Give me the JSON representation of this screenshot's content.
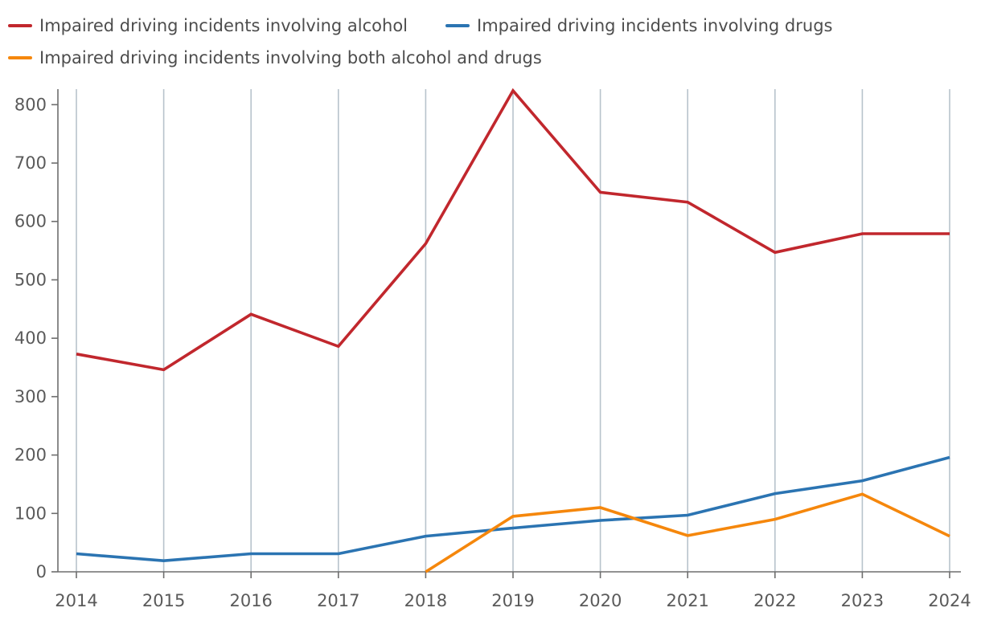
{
  "chart_data": {
    "type": "line",
    "title": "",
    "xlabel": "",
    "ylabel": "",
    "categories": [
      "2014",
      "2015",
      "2016",
      "2017",
      "2018",
      "2019",
      "2020",
      "2021",
      "2022",
      "2023",
      "2024"
    ],
    "ylim": [
      0,
      825
    ],
    "yticks": [
      0,
      100,
      200,
      300,
      400,
      500,
      600,
      700,
      800
    ],
    "grid": "vertical",
    "legend_position": "top-left",
    "series": [
      {
        "name": "Impaired driving incidents involving alcohol",
        "color": "#c1272d",
        "values": [
          373,
          346,
          441,
          386,
          562,
          824,
          650,
          633,
          547,
          579,
          579
        ]
      },
      {
        "name": "Impaired driving incidents involving drugs",
        "color": "#2b74b2",
        "values": [
          31,
          19,
          31,
          31,
          61,
          75,
          88,
          97,
          134,
          156,
          196
        ]
      },
      {
        "name": "Impaired driving incidents involving both alcohol and drugs",
        "color": "#f5870c",
        "values": [
          null,
          null,
          null,
          null,
          0,
          95,
          110,
          62,
          90,
          133,
          61
        ]
      }
    ]
  }
}
